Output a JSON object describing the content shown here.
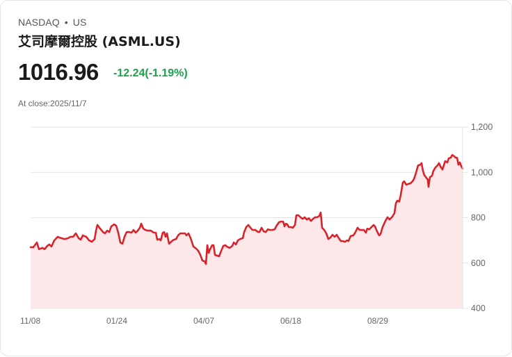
{
  "header": {
    "exchange": "NASDAQ",
    "separator": "•",
    "market": "US",
    "title": "艾司摩爾控股 (ASML.US)",
    "price": "1016.96",
    "change": "-12.24(-1.19%)",
    "close_label": "At close:2025/11/7"
  },
  "colors": {
    "line": "#d9232b",
    "fill": "#fce8e8",
    "grid": "#e2e2e2",
    "change": "#1aa14a"
  },
  "chart_data": {
    "type": "area",
    "title": "ASML.US price (1 year)",
    "xlabel": "",
    "ylabel": "",
    "ylim": [
      400,
      1200
    ],
    "yticks": [
      "1,200",
      "1,000",
      "800",
      "600",
      "400"
    ],
    "ytick_values": [
      1200,
      1000,
      800,
      600,
      400
    ],
    "xticks": [
      "11/08",
      "01/24",
      "04/07",
      "06/18",
      "08/29"
    ],
    "grid": true,
    "legend": "none",
    "last_value": 1016.96,
    "series": [
      {
        "name": "ASML.US",
        "points": [
          [
            0,
            670
          ],
          [
            4,
            670
          ],
          [
            9,
            691
          ],
          [
            12,
            661
          ],
          [
            17,
            667
          ],
          [
            20,
            661
          ],
          [
            24,
            676
          ],
          [
            27,
            682
          ],
          [
            30,
            673
          ],
          [
            34,
            700
          ],
          [
            39,
            716
          ],
          [
            44,
            710
          ],
          [
            49,
            706
          ],
          [
            54,
            710
          ],
          [
            57,
            716
          ],
          [
            61,
            716
          ],
          [
            65,
            731
          ],
          [
            69,
            710
          ],
          [
            72,
            703
          ],
          [
            75,
            722
          ],
          [
            80,
            716
          ],
          [
            84,
            700
          ],
          [
            88,
            694
          ],
          [
            92,
            706
          ],
          [
            94,
            743
          ],
          [
            96,
            768
          ],
          [
            100,
            752
          ],
          [
            104,
            737
          ],
          [
            107,
            731
          ],
          [
            110,
            743
          ],
          [
            113,
            737
          ],
          [
            116,
            762
          ],
          [
            120,
            771
          ],
          [
            123,
            765
          ],
          [
            126,
            734
          ],
          [
            129,
            691
          ],
          [
            132,
            685
          ],
          [
            135,
            716
          ],
          [
            138,
            737
          ],
          [
            142,
            737
          ],
          [
            145,
            734
          ],
          [
            148,
            746
          ],
          [
            151,
            734
          ],
          [
            154,
            743
          ],
          [
            157,
            756
          ],
          [
            159,
            774
          ],
          [
            162,
            752
          ],
          [
            165,
            746
          ],
          [
            169,
            743
          ],
          [
            173,
            743
          ],
          [
            177,
            734
          ],
          [
            180,
            734
          ],
          [
            182,
            703
          ],
          [
            185,
            706
          ],
          [
            187,
            700
          ],
          [
            190,
            734
          ],
          [
            192,
            737
          ],
          [
            194,
            716
          ],
          [
            196,
            731
          ],
          [
            199,
            685
          ],
          [
            203,
            697
          ],
          [
            206,
            703
          ],
          [
            209,
            706
          ],
          [
            212,
            722
          ],
          [
            215,
            731
          ],
          [
            219,
            731
          ],
          [
            222,
            731
          ],
          [
            224,
            722
          ],
          [
            227,
            731
          ],
          [
            230,
            710
          ],
          [
            234,
            673
          ],
          [
            238,
            664
          ],
          [
            241,
            654
          ],
          [
            244,
            636
          ],
          [
            247,
            611
          ],
          [
            250,
            608
          ],
          [
            252,
            596
          ],
          [
            254,
            679
          ],
          [
            256,
            645
          ],
          [
            258,
            661
          ],
          [
            261,
            679
          ],
          [
            263,
            679
          ],
          [
            265,
            636
          ],
          [
            268,
            633
          ],
          [
            271,
            630
          ],
          [
            274,
            654
          ],
          [
            277,
            676
          ],
          [
            280,
            679
          ],
          [
            282,
            673
          ],
          [
            286,
            667
          ],
          [
            290,
            676
          ],
          [
            292,
            691
          ],
          [
            295,
            682
          ],
          [
            298,
            700
          ],
          [
            301,
            706
          ],
          [
            305,
            710
          ],
          [
            307,
            737
          ],
          [
            310,
            759
          ],
          [
            313,
            768
          ],
          [
            316,
            756
          ],
          [
            319,
            746
          ],
          [
            323,
            746
          ],
          [
            327,
            737
          ],
          [
            329,
            737
          ],
          [
            332,
            756
          ],
          [
            335,
            740
          ],
          [
            338,
            737
          ],
          [
            341,
            749
          ],
          [
            344,
            746
          ],
          [
            347,
            746
          ],
          [
            351,
            749
          ],
          [
            353,
            762
          ],
          [
            357,
            780
          ],
          [
            360,
            783
          ],
          [
            363,
            783
          ],
          [
            365,
            762
          ],
          [
            367,
            774
          ],
          [
            369,
            771
          ],
          [
            371,
            759
          ],
          [
            374,
            759
          ],
          [
            377,
            756
          ],
          [
            380,
            768
          ],
          [
            382,
            811
          ],
          [
            385,
            811
          ],
          [
            388,
            802
          ],
          [
            391,
            795
          ],
          [
            394,
            802
          ],
          [
            397,
            792
          ],
          [
            400,
            798
          ],
          [
            403,
            786
          ],
          [
            406,
            795
          ],
          [
            409,
            802
          ],
          [
            412,
            802
          ],
          [
            415,
            808
          ],
          [
            417,
            823
          ],
          [
            419,
            756
          ],
          [
            422,
            746
          ],
          [
            425,
            731
          ],
          [
            428,
            706
          ],
          [
            431,
            713
          ],
          [
            434,
            725
          ],
          [
            437,
            716
          ],
          [
            440,
            725
          ],
          [
            443,
            710
          ],
          [
            446,
            697
          ],
          [
            449,
            697
          ],
          [
            452,
            694
          ],
          [
            455,
            700
          ],
          [
            457,
            697
          ],
          [
            460,
            719
          ],
          [
            464,
            722
          ],
          [
            467,
            737
          ],
          [
            470,
            756
          ],
          [
            473,
            746
          ],
          [
            476,
            746
          ],
          [
            479,
            746
          ],
          [
            482,
            734
          ],
          [
            484,
            752
          ],
          [
            487,
            749
          ],
          [
            490,
            759
          ],
          [
            493,
            768
          ],
          [
            495,
            762
          ],
          [
            498,
            740
          ],
          [
            501,
            722
          ],
          [
            503,
            728
          ],
          [
            506,
            759
          ],
          [
            510,
            786
          ],
          [
            513,
            802
          ],
          [
            516,
            792
          ],
          [
            520,
            805
          ],
          [
            523,
            820
          ],
          [
            525,
            863
          ],
          [
            527,
            875
          ],
          [
            530,
            872
          ],
          [
            532,
            900
          ],
          [
            535,
            955
          ],
          [
            537,
            961
          ],
          [
            540,
            946
          ],
          [
            543,
            949
          ],
          [
            546,
            952
          ],
          [
            549,
            961
          ],
          [
            551,
            970
          ],
          [
            554,
            998
          ],
          [
            557,
            1031
          ],
          [
            560,
            1034
          ],
          [
            562,
            1041
          ],
          [
            564,
            1007
          ],
          [
            566,
            988
          ],
          [
            569,
            976
          ],
          [
            571,
            967
          ],
          [
            572,
            936
          ],
          [
            574,
            979
          ],
          [
            577,
            985
          ],
          [
            579,
            1007
          ],
          [
            582,
            1022
          ],
          [
            585,
            1031
          ],
          [
            587,
            1041
          ],
          [
            590,
            1022
          ],
          [
            592,
            1013
          ],
          [
            594,
            1031
          ],
          [
            596,
            1050
          ],
          [
            599,
            1044
          ],
          [
            601,
            1062
          ],
          [
            604,
            1065
          ],
          [
            606,
            1077
          ],
          [
            609,
            1071
          ],
          [
            611,
            1065
          ],
          [
            613,
            1065
          ],
          [
            615,
            1034
          ],
          [
            617,
            1044
          ],
          [
            619,
            1028
          ],
          [
            621,
            1017
          ]
        ]
      }
    ]
  }
}
